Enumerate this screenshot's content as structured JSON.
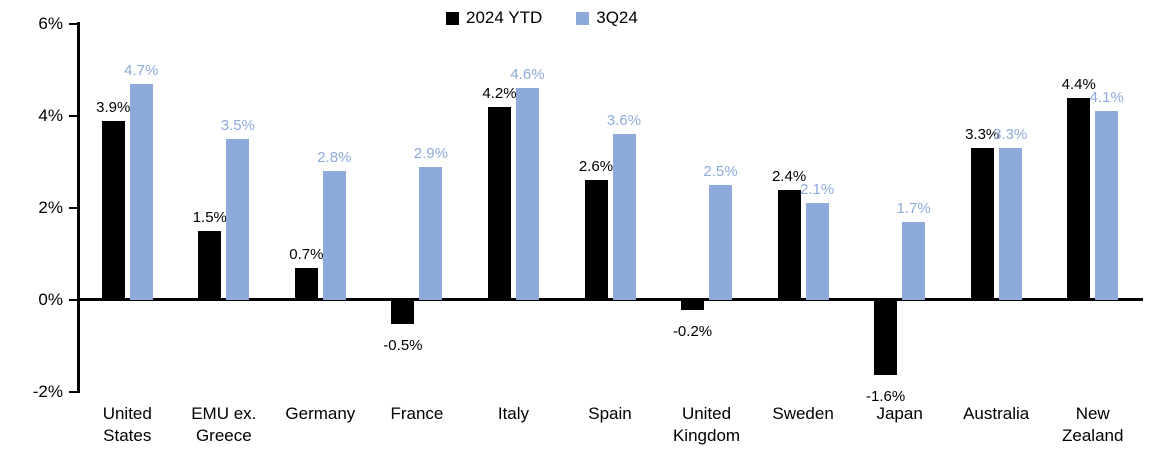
{
  "chart_data": {
    "type": "bar",
    "title": "",
    "categories": [
      "United States",
      "EMU ex. Greece",
      "Germany",
      "France",
      "Italy",
      "Spain",
      "United Kingdom",
      "Sweden",
      "Japan",
      "Australia",
      "New Zealand"
    ],
    "category_label_lines": [
      [
        "United",
        "States"
      ],
      [
        "EMU ex.",
        "Greece"
      ],
      [
        "Germany"
      ],
      [
        "France"
      ],
      [
        "Italy"
      ],
      [
        "Spain"
      ],
      [
        "United",
        "Kingdom"
      ],
      [
        "Sweden"
      ],
      [
        "Japan"
      ],
      [
        "Australia"
      ],
      [
        "New",
        "Zealand"
      ]
    ],
    "series": [
      {
        "name": "2024 YTD",
        "color": "#000000",
        "values": [
          3.9,
          1.5,
          0.7,
          -0.5,
          4.2,
          2.6,
          -0.2,
          2.4,
          -1.6,
          3.3,
          4.4
        ],
        "labels": [
          "3.9%",
          "1.5%",
          "0.7%",
          "-0.5%",
          "4.2%",
          "2.6%",
          "-0.2%",
          "2.4%",
          "-1.6%",
          "3.3%",
          "4.4%"
        ]
      },
      {
        "name": "3Q24",
        "color": "#8EAADB",
        "values": [
          4.7,
          3.5,
          2.8,
          2.9,
          4.6,
          3.6,
          2.5,
          2.1,
          1.7,
          3.3,
          4.1
        ],
        "labels": [
          "4.7%",
          "3.5%",
          "2.8%",
          "2.9%",
          "4.6%",
          "3.6%",
          "2.5%",
          "2.1%",
          "1.7%",
          "3.3%",
          "4.1%"
        ]
      }
    ],
    "y_axis": {
      "min": -2,
      "max": 6,
      "tick_step": 2,
      "ticks": [
        {
          "value": 6,
          "label": "6%"
        },
        {
          "value": 4,
          "label": "4%"
        },
        {
          "value": 2,
          "label": "2%"
        },
        {
          "value": 0,
          "label": "0%"
        },
        {
          "value": -2,
          "label": "-2%"
        }
      ]
    },
    "xlabel": "",
    "ylabel": "",
    "grid": "off",
    "legend_position": "top-center",
    "data_labels": "outside-end",
    "axis_color": "#000000",
    "background_color": "#ffffff"
  }
}
